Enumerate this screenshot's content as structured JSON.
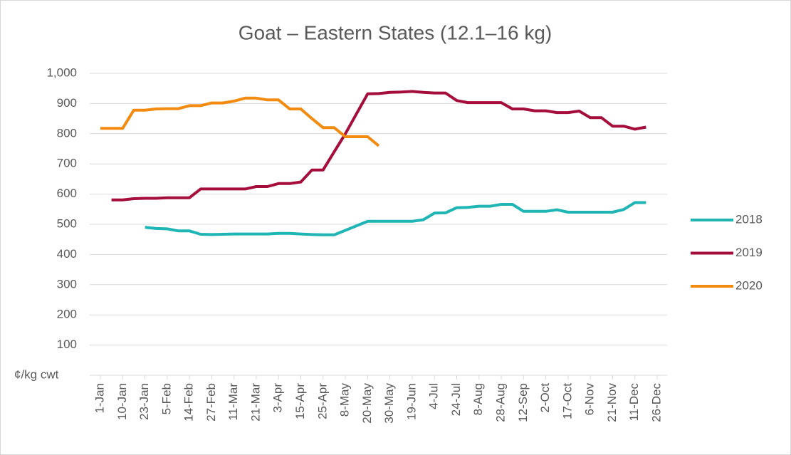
{
  "chart_data": {
    "type": "line",
    "title": "Goat – Eastern States (12.1–16 kg)",
    "y_label": "¢/kg cwt",
    "categories": [
      "1-Jan",
      null,
      "10-Jan",
      null,
      "23-Jan",
      null,
      "5-Feb",
      null,
      "14-Feb",
      null,
      "27-Feb",
      null,
      "11-Mar",
      null,
      "21-Mar",
      null,
      "3-Apr",
      null,
      "15-Apr",
      null,
      "25-Apr",
      null,
      "8-May",
      null,
      "20-May",
      null,
      "30-May",
      null,
      "19-Jun",
      null,
      "4-Jul",
      null,
      "24-Jul",
      null,
      "8-Aug",
      null,
      "28-Aug",
      null,
      "12-Sep",
      null,
      "2-Oct",
      null,
      "17-Oct",
      null,
      "6-Nov",
      null,
      "21-Nov",
      null,
      "11-Dec",
      null,
      "26-Dec"
    ],
    "series": [
      {
        "name": "2018",
        "color": "#1fb5b5",
        "values": [
          null,
          null,
          null,
          null,
          490,
          486,
          485,
          478,
          478,
          467,
          466,
          467,
          468,
          468,
          468,
          468,
          470,
          470,
          468,
          466,
          465,
          465,
          480,
          495,
          510,
          510,
          510,
          510,
          510,
          515,
          537,
          538,
          555,
          556,
          560,
          560,
          566,
          566,
          543,
          543,
          543,
          548,
          540,
          540,
          540,
          540,
          540,
          549,
          572,
          572,
          null
        ]
      },
      {
        "name": "2019",
        "color": "#a50d3b",
        "values": [
          null,
          581,
          581,
          585,
          586,
          586,
          588,
          588,
          588,
          617,
          617,
          617,
          617,
          617,
          625,
          625,
          635,
          635,
          640,
          680,
          680,
          740,
          800,
          866,
          932,
          933,
          937,
          938,
          940,
          937,
          935,
          935,
          910,
          903,
          903,
          903,
          903,
          882,
          882,
          876,
          876,
          870,
          870,
          875,
          853,
          853,
          825,
          825,
          815,
          822,
          null
        ]
      },
      {
        "name": "2020",
        "color": "#f28b10",
        "values": [
          818,
          818,
          818,
          878,
          878,
          882,
          883,
          883,
          893,
          893,
          902,
          902,
          908,
          918,
          918,
          912,
          912,
          882,
          882,
          850,
          820,
          820,
          790,
          790,
          790,
          760,
          null,
          null,
          null,
          null,
          null,
          null,
          null,
          null,
          null,
          null,
          null,
          null,
          null,
          null,
          null,
          null,
          null,
          null,
          null,
          null,
          null,
          null,
          null,
          null,
          null
        ]
      }
    ],
    "ylim": [
      0,
      1000
    ],
    "yticks": [
      100,
      200,
      300,
      400,
      500,
      600,
      700,
      800,
      900,
      {
        "value": 1000,
        "label": "1,000"
      }
    ],
    "grid": true,
    "legend": "right"
  }
}
